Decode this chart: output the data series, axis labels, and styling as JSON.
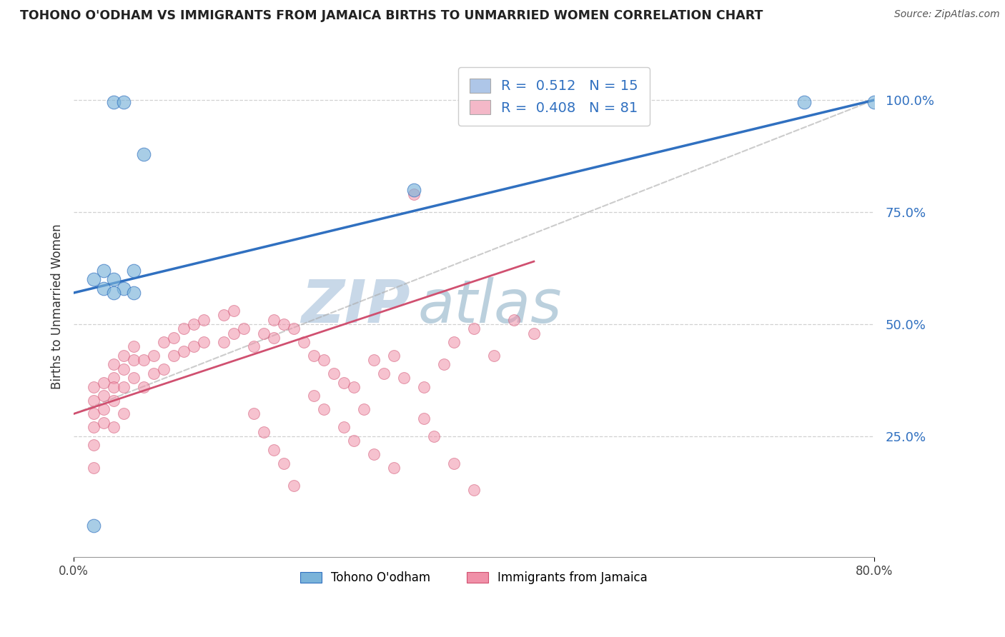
{
  "title": "TOHONO O'ODHAM VS IMMIGRANTS FROM JAMAICA BIRTHS TO UNMARRIED WOMEN CORRELATION CHART",
  "source": "Source: ZipAtlas.com",
  "ylabel": "Births to Unmarried Women",
  "x_min": 0.0,
  "x_max": 0.8,
  "y_min": -0.02,
  "y_max": 1.1,
  "y_ticks": [
    0.25,
    0.5,
    0.75,
    1.0
  ],
  "y_tick_labels": [
    "25.0%",
    "50.0%",
    "75.0%",
    "100.0%"
  ],
  "x_ticks": [
    0.0,
    0.8
  ],
  "x_tick_labels": [
    "0.0%",
    "80.0%"
  ],
  "legend_entry1": {
    "color": "#aec6e8",
    "R": "0.512",
    "N": "15"
  },
  "legend_entry2": {
    "color": "#f4b8c8",
    "R": "0.408",
    "N": "81"
  },
  "legend_label1": "Tohono O'odham",
  "legend_label2": "Immigrants from Jamaica",
  "blue_scatter_x": [
    0.04,
    0.05,
    0.34,
    0.73,
    0.8,
    0.07,
    0.02,
    0.03,
    0.03,
    0.04,
    0.05,
    0.06,
    0.06,
    0.02,
    0.04
  ],
  "blue_scatter_y": [
    0.995,
    0.995,
    0.8,
    0.995,
    0.995,
    0.88,
    0.6,
    0.62,
    0.58,
    0.6,
    0.58,
    0.62,
    0.57,
    0.05,
    0.57
  ],
  "pink_scatter_x": [
    0.34,
    0.02,
    0.02,
    0.02,
    0.02,
    0.02,
    0.02,
    0.03,
    0.03,
    0.03,
    0.03,
    0.04,
    0.04,
    0.04,
    0.04,
    0.04,
    0.05,
    0.05,
    0.05,
    0.05,
    0.06,
    0.06,
    0.06,
    0.07,
    0.07,
    0.08,
    0.08,
    0.09,
    0.09,
    0.1,
    0.1,
    0.11,
    0.11,
    0.12,
    0.12,
    0.13,
    0.13,
    0.15,
    0.15,
    0.16,
    0.16,
    0.17,
    0.18,
    0.19,
    0.2,
    0.2,
    0.21,
    0.22,
    0.23,
    0.24,
    0.25,
    0.26,
    0.27,
    0.28,
    0.29,
    0.3,
    0.31,
    0.32,
    0.33,
    0.35,
    0.37,
    0.38,
    0.4,
    0.42,
    0.44,
    0.46,
    0.18,
    0.19,
    0.2,
    0.21,
    0.22,
    0.24,
    0.25,
    0.27,
    0.28,
    0.3,
    0.32,
    0.35,
    0.36,
    0.38,
    0.4
  ],
  "pink_scatter_y": [
    0.79,
    0.36,
    0.33,
    0.3,
    0.27,
    0.23,
    0.18,
    0.37,
    0.34,
    0.31,
    0.28,
    0.41,
    0.38,
    0.36,
    0.33,
    0.27,
    0.43,
    0.4,
    0.36,
    0.3,
    0.45,
    0.42,
    0.38,
    0.42,
    0.36,
    0.43,
    0.39,
    0.46,
    0.4,
    0.47,
    0.43,
    0.49,
    0.44,
    0.5,
    0.45,
    0.51,
    0.46,
    0.52,
    0.46,
    0.53,
    0.48,
    0.49,
    0.45,
    0.48,
    0.51,
    0.47,
    0.5,
    0.49,
    0.46,
    0.43,
    0.42,
    0.39,
    0.37,
    0.36,
    0.31,
    0.42,
    0.39,
    0.43,
    0.38,
    0.36,
    0.41,
    0.46,
    0.49,
    0.43,
    0.51,
    0.48,
    0.3,
    0.26,
    0.22,
    0.19,
    0.14,
    0.34,
    0.31,
    0.27,
    0.24,
    0.21,
    0.18,
    0.29,
    0.25,
    0.19,
    0.13
  ],
  "blue_line_x0": 0.0,
  "blue_line_x1": 0.8,
  "blue_line_y0": 0.57,
  "blue_line_y1": 1.0,
  "pink_line_x0": 0.0,
  "pink_line_x1": 0.46,
  "pink_line_y0": 0.3,
  "pink_line_y1": 0.64,
  "grey_line_x0": 0.0,
  "grey_line_x1": 0.8,
  "grey_line_y0": 0.3,
  "grey_line_y1": 1.0,
  "background_color": "#ffffff",
  "grid_color": "#cccccc",
  "blue_scatter_color": "#7ab3d9",
  "pink_scatter_color": "#f090a8",
  "blue_line_color": "#3070c0",
  "pink_line_color": "#d05070",
  "grey_line_color": "#aaaaaa",
  "watermark_zip_color": "#c8d8e8",
  "watermark_atlas_color": "#b0c8d8"
}
